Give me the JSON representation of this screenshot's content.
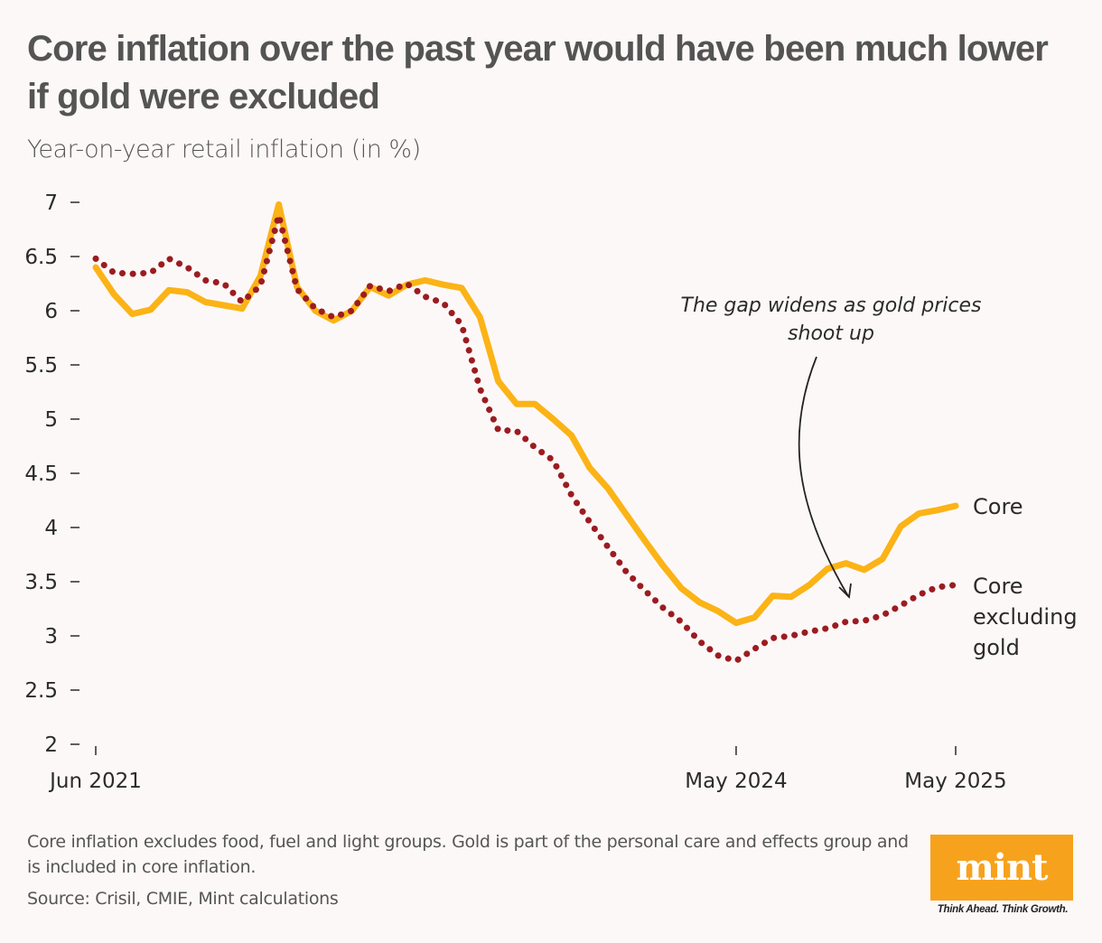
{
  "header": {
    "title": "Core inflation over the past year would have been much lower if gold were excluded",
    "subtitle": "Year-on-year retail inflation (in %)"
  },
  "footer": {
    "note": "Core inflation excludes food, fuel and light groups. Gold is part of the personal care and effects group and is included in core inflation.",
    "source": "Source: Crisil, CMIE, Mint calculations",
    "logo": "mint",
    "tagline": "Think Ahead. Think Growth."
  },
  "colors": {
    "core": "#fbb316",
    "core_ex_gold": "#9b1c20",
    "background": "#fdf8f8",
    "logo": "#f7a21d"
  },
  "chart_data": {
    "type": "line",
    "title": "Core inflation over the past year would have been much lower if gold were excluded",
    "ylabel": "Year-on-year retail inflation (in %)",
    "xlabel": "",
    "ylim": [
      2,
      7
    ],
    "yticks": [
      2,
      2.5,
      3,
      3.5,
      4,
      4.5,
      5,
      5.5,
      6,
      6.5,
      7
    ],
    "ytick_labels": [
      "2",
      "2.5",
      "3",
      "3.5",
      "4",
      "4.5",
      "5",
      "5.5",
      "6",
      "6.5",
      "7"
    ],
    "xticks": [
      {
        "index": 0,
        "label": "Jun 2021"
      },
      {
        "index": 35,
        "label": "May 2024"
      },
      {
        "index": 47,
        "label": "May 2025"
      }
    ],
    "x": [
      "Jun 2021",
      "Jul 2021",
      "Aug 2021",
      "Sep 2021",
      "Oct 2021",
      "Nov 2021",
      "Dec 2021",
      "Jan 2022",
      "Feb 2022",
      "Mar 2022",
      "Apr 2022",
      "May 2022",
      "Jun 2022",
      "Jul 2022",
      "Aug 2022",
      "Sep 2022",
      "Oct 2022",
      "Nov 2022",
      "Dec 2022",
      "Jan 2023",
      "Feb 2023",
      "Mar 2023",
      "Apr 2023",
      "May 2023",
      "Jun 2023",
      "Jul 2023",
      "Aug 2023",
      "Sep 2023",
      "Oct 2023",
      "Nov 2023",
      "Dec 2023",
      "Jan 2024",
      "Feb 2024",
      "Mar 2024",
      "Apr 2024",
      "May 2024",
      "Jun 2024",
      "Jul 2024",
      "Aug 2024",
      "Sep 2024",
      "Oct 2024",
      "Nov 2024",
      "Dec 2024",
      "Jan 2025",
      "Feb 2025",
      "Mar 2025",
      "Apr 2025",
      "May 2025"
    ],
    "series": [
      {
        "name": "Core",
        "style": "solid",
        "values": [
          6.4,
          6.15,
          5.97,
          6.01,
          6.19,
          6.17,
          6.08,
          6.05,
          6.02,
          6.32,
          6.98,
          6.22,
          6.0,
          5.91,
          6.0,
          6.22,
          6.14,
          6.24,
          6.28,
          6.24,
          6.21,
          5.94,
          5.35,
          5.14,
          5.14,
          5.0,
          4.85,
          4.55,
          4.36,
          4.12,
          3.88,
          3.65,
          3.44,
          3.31,
          3.23,
          3.12,
          3.17,
          3.37,
          3.36,
          3.47,
          3.62,
          3.67,
          3.61,
          3.71,
          4.01,
          4.13,
          4.16,
          4.2
        ]
      },
      {
        "name": "Core excluding gold",
        "style": "dotted",
        "values": [
          6.48,
          6.35,
          6.34,
          6.35,
          6.48,
          6.4,
          6.28,
          6.25,
          6.08,
          6.23,
          6.88,
          6.2,
          6.02,
          5.94,
          6.0,
          6.23,
          6.18,
          6.25,
          6.13,
          6.07,
          5.87,
          5.28,
          4.9,
          4.89,
          4.74,
          4.62,
          4.3,
          4.05,
          3.82,
          3.59,
          3.42,
          3.26,
          3.13,
          2.95,
          2.82,
          2.77,
          2.88,
          2.98,
          3.0,
          3.04,
          3.07,
          3.13,
          3.14,
          3.19,
          3.28,
          3.38,
          3.45,
          3.47
        ]
      }
    ],
    "legend": [
      {
        "name": "Core",
        "placement": "right, line end"
      },
      {
        "name": "Core excluding gold",
        "placement": "right, line end"
      }
    ],
    "labels": {
      "core": "Core",
      "core_ex_gold_lines": [
        "Core",
        "excluding",
        "gold"
      ]
    },
    "annotation": {
      "text_lines": [
        "The gap widens as gold prices",
        "shoot up"
      ]
    },
    "grid": false
  }
}
